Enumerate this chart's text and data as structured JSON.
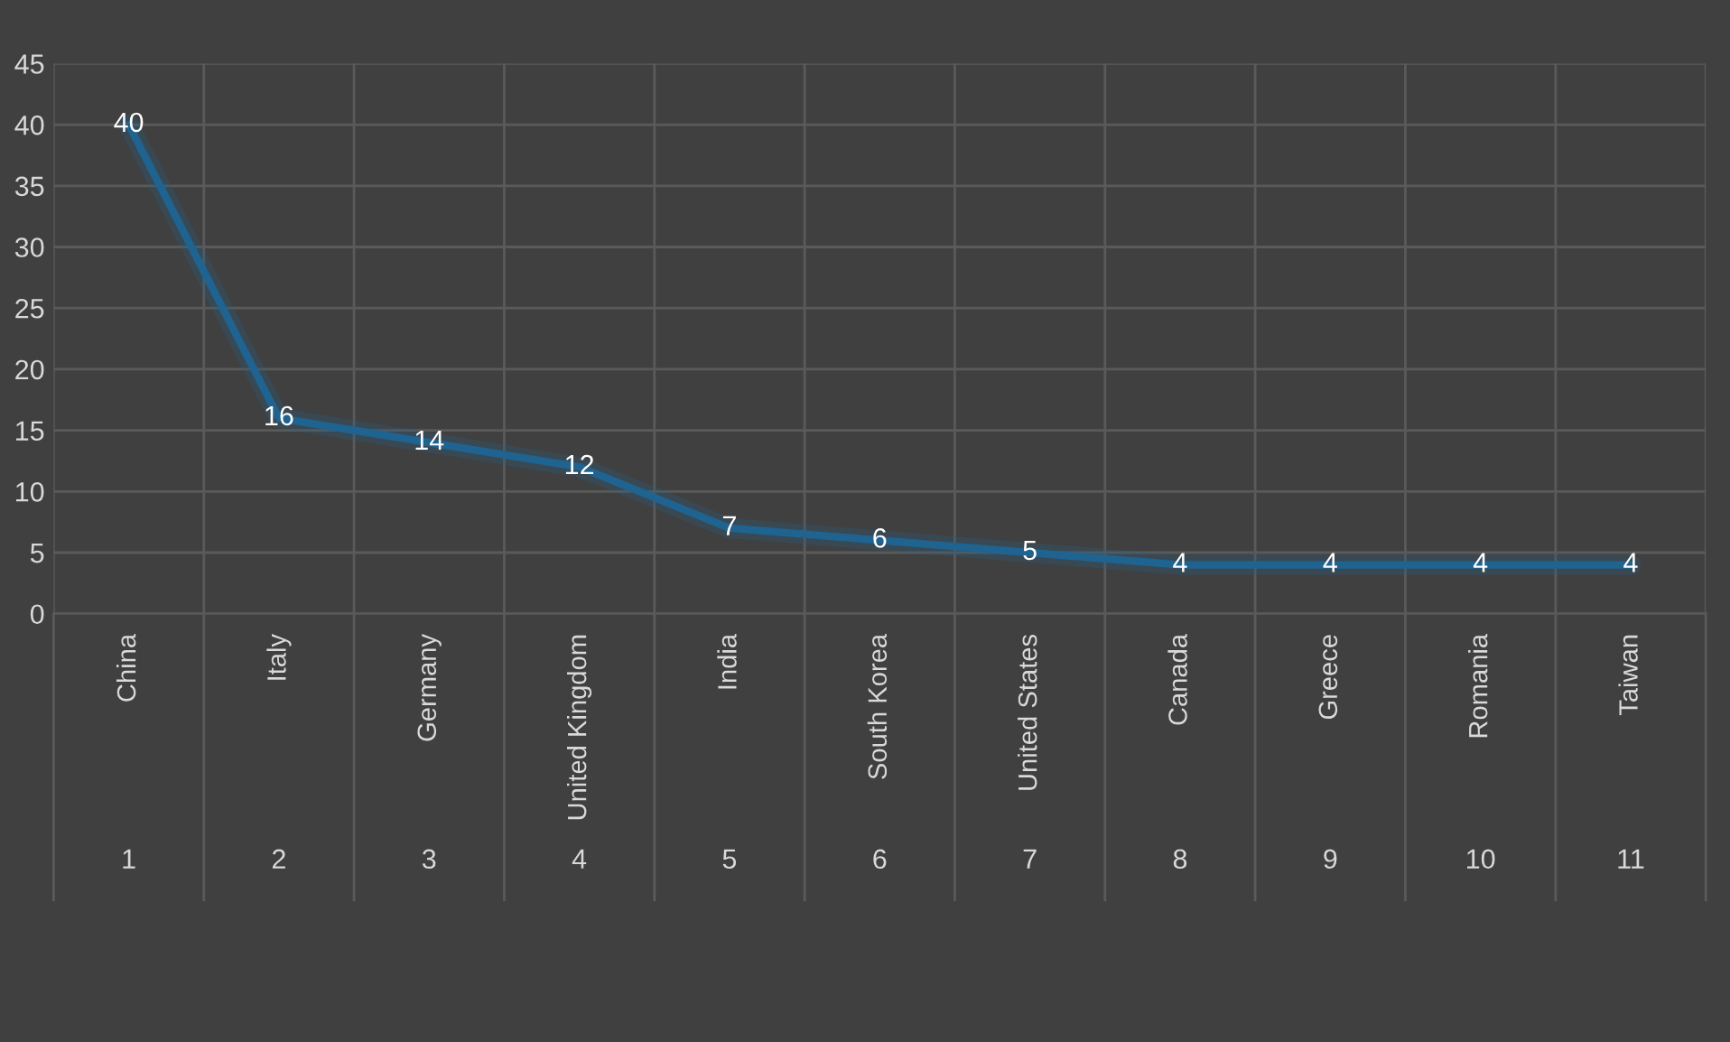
{
  "chart_data": {
    "type": "line",
    "categories": [
      "China",
      "Italy",
      "Germany",
      "United Kingdom",
      "India",
      "South Korea",
      "United States",
      "Canada",
      "Greece",
      "Romania",
      "Taiwan"
    ],
    "series": [
      {
        "color": "#1f6391",
        "values": [
          40,
          16,
          14,
          12,
          7,
          6,
          5,
          4,
          4,
          4,
          4
        ]
      }
    ],
    "ylim": [
      0,
      45
    ],
    "yticks": [
      0,
      5,
      10,
      15,
      20,
      25,
      30,
      35,
      40,
      45
    ],
    "grid": true,
    "data_labels": true,
    "marker": "none",
    "line_style": "solid",
    "annotations": [
      "1",
      "2",
      "3",
      "4",
      "5",
      "6",
      "7",
      "8",
      "9",
      "10",
      "11"
    ]
  }
}
